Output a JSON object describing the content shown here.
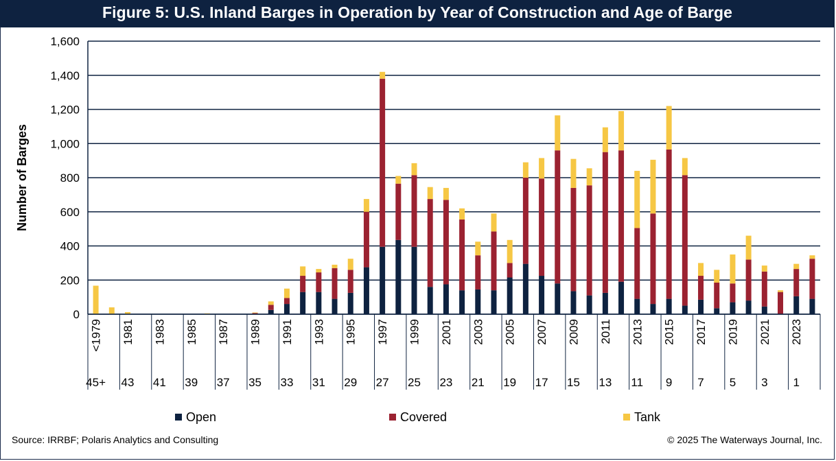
{
  "title": "Figure 5: U.S. Inland Barges in Operation by Year of Construction and Age of Barge",
  "source": "Source: IRRBF; Polaris Analytics and Consulting",
  "copyright": "© 2025 The Waterways Journal, Inc.",
  "colors": {
    "title_bg": "#0e2240",
    "Open": "#0e2240",
    "Covered": "#9b2231",
    "Tank": "#f6c744",
    "grid": "#0e2240"
  },
  "chart_data": {
    "type": "bar",
    "stacked": true,
    "ylabel": "Number of Barges",
    "xlabel": "",
    "ylim": [
      0,
      1600
    ],
    "yticks": [
      0,
      200,
      400,
      600,
      800,
      1000,
      1200,
      1400,
      1600
    ],
    "ytick_labels": [
      "0",
      "200",
      "400",
      "600",
      "800",
      "1,000",
      "1,200",
      "1,400",
      "1,600"
    ],
    "grid": true,
    "legend_position": "bottom",
    "categories": [
      "<1979",
      "1980",
      "1981",
      "1982",
      "1983",
      "1984",
      "1985",
      "1986",
      "1987",
      "1988",
      "1989",
      "1990",
      "1991",
      "1992",
      "1993",
      "1994",
      "1995",
      "1996",
      "1997",
      "1998",
      "1999",
      "2000",
      "2001",
      "2002",
      "2003",
      "2004",
      "2005",
      "2006",
      "2007",
      "2008",
      "2009",
      "2010",
      "2011",
      "2012",
      "2013",
      "2014",
      "2015",
      "2016",
      "2017",
      "2018",
      "2019",
      "2020",
      "2021",
      "2022",
      "2023",
      "2024"
    ],
    "year_tick_labels": [
      "<1979",
      "",
      "1981",
      "",
      "1983",
      "",
      "1985",
      "",
      "1987",
      "",
      "1989",
      "",
      "1991",
      "",
      "1993",
      "",
      "1995",
      "",
      "1997",
      "",
      "1999",
      "",
      "2001",
      "",
      "2003",
      "",
      "2005",
      "",
      "2007",
      "",
      "2009",
      "",
      "2011",
      "",
      "2013",
      "",
      "2015",
      "",
      "2017",
      "",
      "2019",
      "",
      "2021",
      "",
      "2023",
      ""
    ],
    "age_tick_labels": [
      "45+",
      "",
      "43",
      "",
      "41",
      "",
      "39",
      "",
      "37",
      "",
      "35",
      "",
      "33",
      "",
      "31",
      "",
      "29",
      "",
      "27",
      "",
      "25",
      "",
      "23",
      "",
      "21",
      "",
      "19",
      "",
      "17",
      "",
      "15",
      "",
      "13",
      "",
      "11",
      "",
      "9",
      "",
      "7",
      "",
      "5",
      "",
      "3",
      "",
      "1",
      ""
    ],
    "series": [
      {
        "name": "Open",
        "values": [
          2,
          0,
          0,
          0,
          0,
          0,
          0,
          0,
          0,
          0,
          2,
          25,
          60,
          130,
          130,
          90,
          125,
          275,
          395,
          435,
          395,
          160,
          175,
          140,
          145,
          140,
          215,
          295,
          225,
          180,
          135,
          110,
          125,
          190,
          90,
          60,
          90,
          50,
          85,
          35,
          70,
          80,
          45,
          0,
          105,
          90
        ]
      },
      {
        "name": "Covered",
        "values": [
          0,
          0,
          0,
          0,
          0,
          0,
          0,
          0,
          0,
          0,
          5,
          30,
          35,
          95,
          115,
          180,
          135,
          325,
          985,
          330,
          420,
          515,
          495,
          415,
          200,
          345,
          85,
          505,
          570,
          780,
          605,
          645,
          825,
          770,
          415,
          530,
          875,
          765,
          140,
          150,
          110,
          240,
          205,
          130,
          160,
          235
        ]
      },
      {
        "name": "Tank",
        "values": [
          165,
          40,
          12,
          2,
          2,
          2,
          2,
          5,
          0,
          0,
          3,
          20,
          55,
          55,
          20,
          20,
          65,
          75,
          40,
          45,
          70,
          70,
          70,
          65,
          80,
          105,
          135,
          90,
          120,
          205,
          170,
          100,
          145,
          230,
          335,
          315,
          255,
          100,
          75,
          75,
          170,
          140,
          35,
          10,
          30,
          20
        ]
      }
    ]
  }
}
